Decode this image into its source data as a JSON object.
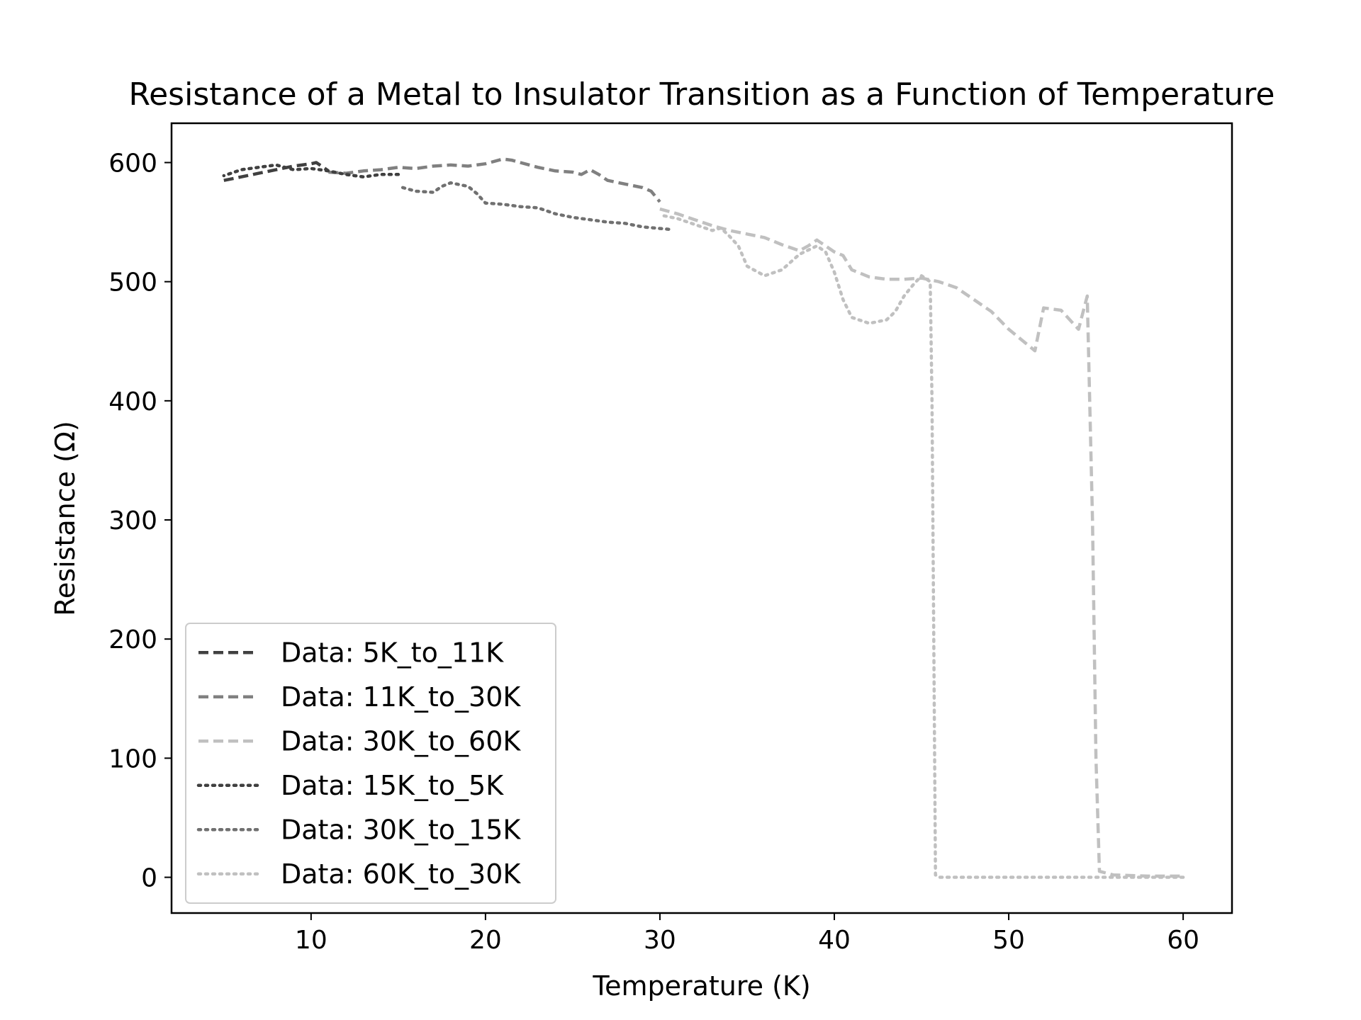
{
  "chart_data": {
    "type": "line",
    "title": "Resistance of a Metal to Insulator Transition as a Function of Temperature",
    "xlabel": "Temperature (K)",
    "ylabel": "Resistance (Ω)",
    "xlim": [
      2,
      62.8
    ],
    "ylim": [
      -30,
      633
    ],
    "xticks": [
      10,
      20,
      30,
      40,
      50,
      60
    ],
    "yticks": [
      0,
      100,
      200,
      300,
      400,
      500,
      600
    ],
    "grid": false,
    "legend_position": "lower left",
    "series": [
      {
        "name": "Data: 5K_to_11K",
        "color": "#404040",
        "dash": "dashed",
        "points": [
          [
            5.0,
            585
          ],
          [
            6.0,
            588
          ],
          [
            7.0,
            591
          ],
          [
            8.0,
            594
          ],
          [
            9.0,
            597
          ],
          [
            10.0,
            599
          ],
          [
            10.3,
            600
          ],
          [
            10.6,
            597
          ],
          [
            11.0,
            593
          ]
        ]
      },
      {
        "name": "Data: 11K_to_30K",
        "color": "#808080",
        "dash": "dashed",
        "points": [
          [
            11.0,
            592
          ],
          [
            12.0,
            591
          ],
          [
            13.0,
            593
          ],
          [
            14.0,
            594
          ],
          [
            15.0,
            596
          ],
          [
            16.0,
            595
          ],
          [
            17.0,
            597
          ],
          [
            18.0,
            598
          ],
          [
            19.0,
            597
          ],
          [
            20.0,
            599
          ],
          [
            21.0,
            603
          ],
          [
            21.5,
            602
          ],
          [
            22.0,
            600
          ],
          [
            23.0,
            596
          ],
          [
            24.0,
            593
          ],
          [
            25.0,
            592
          ],
          [
            25.5,
            590
          ],
          [
            26.0,
            594
          ],
          [
            26.5,
            590
          ],
          [
            27.0,
            585
          ],
          [
            28.0,
            582
          ],
          [
            29.0,
            579
          ],
          [
            29.5,
            576
          ],
          [
            30.0,
            567
          ]
        ]
      },
      {
        "name": "Data: 30K_to_60K",
        "color": "#c0c0c0",
        "dash": "dashed",
        "points": [
          [
            30.0,
            561
          ],
          [
            31.0,
            557
          ],
          [
            32.0,
            552
          ],
          [
            33.0,
            547
          ],
          [
            34.0,
            543
          ],
          [
            35.0,
            540
          ],
          [
            36.0,
            537
          ],
          [
            37.0,
            531
          ],
          [
            38.0,
            526
          ],
          [
            38.5,
            530
          ],
          [
            39.0,
            535
          ],
          [
            40.0,
            525
          ],
          [
            40.5,
            522
          ],
          [
            41.0,
            510
          ],
          [
            42.0,
            504
          ],
          [
            43.0,
            502
          ],
          [
            44.0,
            502
          ],
          [
            45.0,
            503
          ],
          [
            46.0,
            500
          ],
          [
            47.0,
            495
          ],
          [
            48.0,
            485
          ],
          [
            49.0,
            475
          ],
          [
            50.0,
            460
          ],
          [
            51.0,
            448
          ],
          [
            51.5,
            442
          ],
          [
            52.0,
            478
          ],
          [
            53.0,
            476
          ],
          [
            54.0,
            460
          ],
          [
            54.5,
            488
          ],
          [
            54.8,
            300
          ],
          [
            55.0,
            100
          ],
          [
            55.2,
            5
          ],
          [
            56.0,
            2
          ],
          [
            58.0,
            1
          ],
          [
            60.0,
            1
          ]
        ]
      },
      {
        "name": "Data: 15K_to_5K",
        "color": "#404040",
        "dash": "dotted",
        "points": [
          [
            15.0,
            590
          ],
          [
            14.0,
            590
          ],
          [
            13.0,
            588
          ],
          [
            12.0,
            590
          ],
          [
            11.0,
            593
          ],
          [
            10.0,
            595
          ],
          [
            9.0,
            594
          ],
          [
            8.0,
            598
          ],
          [
            7.0,
            596
          ],
          [
            6.0,
            594
          ],
          [
            5.0,
            589
          ]
        ]
      },
      {
        "name": "Data: 30K_to_15K",
        "color": "#707070",
        "dash": "dotted",
        "points": [
          [
            30.5,
            544
          ],
          [
            29.0,
            546
          ],
          [
            28.0,
            549
          ],
          [
            27.0,
            550
          ],
          [
            26.0,
            552
          ],
          [
            25.0,
            554
          ],
          [
            24.0,
            557
          ],
          [
            23.0,
            562
          ],
          [
            22.0,
            563
          ],
          [
            21.0,
            565
          ],
          [
            20.0,
            566
          ],
          [
            19.5,
            574
          ],
          [
            19.0,
            580
          ],
          [
            18.0,
            583
          ],
          [
            17.5,
            580
          ],
          [
            17.0,
            575
          ],
          [
            16.0,
            576
          ],
          [
            15.5,
            578
          ],
          [
            15.0,
            580
          ]
        ]
      },
      {
        "name": "Data: 60K_to_30K",
        "color": "#c0c0c0",
        "dash": "dotted",
        "points": [
          [
            60.0,
            0
          ],
          [
            55.0,
            0
          ],
          [
            50.0,
            0
          ],
          [
            46.0,
            0
          ],
          [
            45.8,
            2
          ],
          [
            45.7,
            200
          ],
          [
            45.6,
            400
          ],
          [
            45.5,
            500
          ],
          [
            45.0,
            505
          ],
          [
            44.5,
            497
          ],
          [
            44.0,
            488
          ],
          [
            43.5,
            475
          ],
          [
            43.0,
            468
          ],
          [
            42.0,
            465
          ],
          [
            41.0,
            470
          ],
          [
            40.5,
            485
          ],
          [
            40.0,
            508
          ],
          [
            39.5,
            525
          ],
          [
            39.0,
            530
          ],
          [
            38.0,
            523
          ],
          [
            37.0,
            510
          ],
          [
            36.0,
            505
          ],
          [
            35.0,
            513
          ],
          [
            34.5,
            530
          ],
          [
            34.0,
            538
          ],
          [
            33.5,
            545
          ],
          [
            33.0,
            543
          ],
          [
            32.0,
            548
          ],
          [
            31.0,
            553
          ],
          [
            30.0,
            556
          ]
        ]
      }
    ]
  }
}
